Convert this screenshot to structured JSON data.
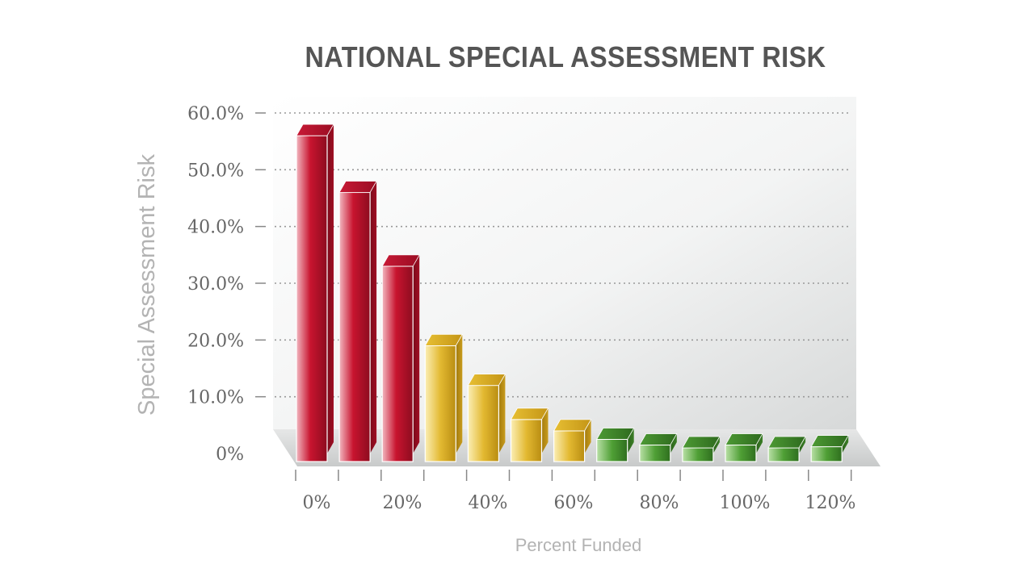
{
  "chart_data": {
    "type": "bar",
    "title": "NATIONAL SPECIAL ASSESSMENT RISK",
    "xlabel": "Percent Funded",
    "ylabel": "Special Assessment Risk",
    "ylim": [
      0,
      60
    ],
    "y_ticks": [
      "60.0%",
      "50.0%",
      "40.0%",
      "30.0%",
      "20.0%",
      "10.0%",
      "0%"
    ],
    "y_tick_values": [
      60,
      50,
      40,
      30,
      20,
      10,
      0
    ],
    "x_tick_labels": [
      "0%",
      "20%",
      "40%",
      "60%",
      "80%",
      "100%",
      "120%"
    ],
    "grid": true,
    "values": [
      56,
      46,
      33,
      19,
      12,
      6,
      4,
      2.5,
      1.5,
      1,
      1.5,
      1,
      1.2
    ],
    "bar_tones": [
      "red",
      "red",
      "red",
      "gold",
      "gold",
      "gold",
      "gold",
      "green",
      "green",
      "green",
      "green",
      "green",
      "green"
    ],
    "colors": {
      "red": "#b5122a",
      "gold": "#d9ad24",
      "green": "#3f8f2c",
      "grid": "#999999",
      "text": "#666666",
      "title": "#555555",
      "axis_label": "#b3b3b3"
    }
  }
}
